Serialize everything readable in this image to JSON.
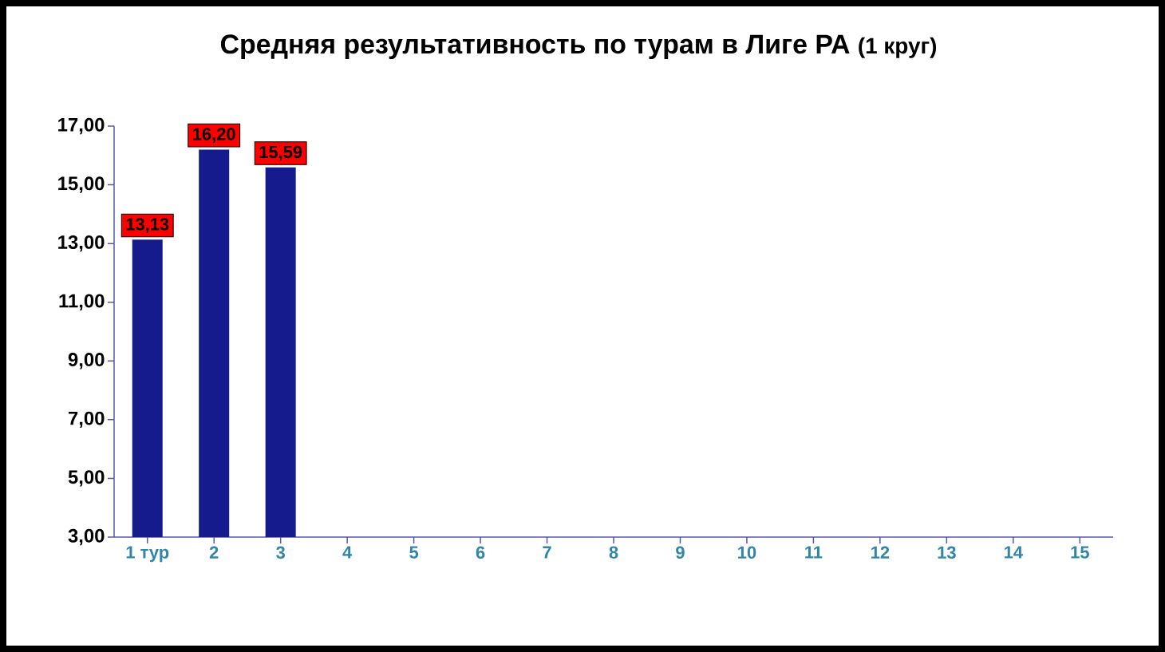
{
  "chart_data": {
    "type": "bar",
    "title": "Средняя результативность по турам в Лиге РА",
    "subtitle": "(1 круг)",
    "categories": [
      "1 тур",
      "2",
      "3",
      "4",
      "5",
      "6",
      "7",
      "8",
      "9",
      "10",
      "11",
      "12",
      "13",
      "14",
      "15"
    ],
    "values": [
      13.13,
      16.2,
      15.59,
      null,
      null,
      null,
      null,
      null,
      null,
      null,
      null,
      null,
      null,
      null,
      null
    ],
    "value_labels": [
      "13,13",
      "16,20",
      "15,59",
      null,
      null,
      null,
      null,
      null,
      null,
      null,
      null,
      null,
      null,
      null,
      null
    ],
    "color": "#151a8c",
    "ylim": [
      3,
      17
    ],
    "yticks": [
      {
        "value": 3,
        "label": "3,00"
      },
      {
        "value": 5,
        "label": "5,00"
      },
      {
        "value": 7,
        "label": "7,00"
      },
      {
        "value": 9,
        "label": "9,00"
      },
      {
        "value": 11,
        "label": "11,00"
      },
      {
        "value": 13,
        "label": "13,00"
      },
      {
        "value": 15,
        "label": "15,00"
      },
      {
        "value": 17,
        "label": "17,00"
      }
    ],
    "grid": false
  }
}
